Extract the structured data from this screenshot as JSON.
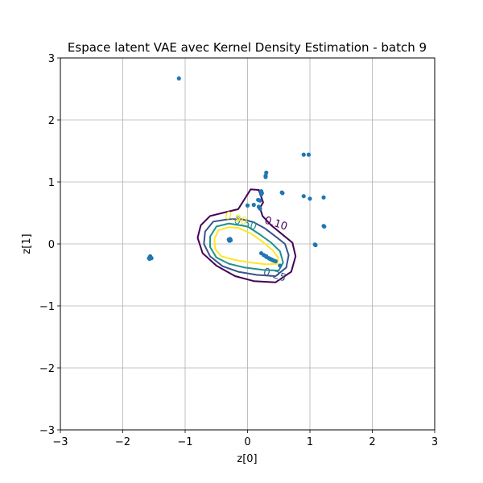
{
  "chart_data": {
    "type": "scatter",
    "title": "Espace latent VAE avec Kernel Density Estimation - batch 9",
    "xlabel": "z[0]",
    "ylabel": "z[1]",
    "xlim": [
      -3,
      3
    ],
    "ylim": [
      -3,
      3
    ],
    "xticks": [
      "−3",
      "−2",
      "−1",
      "0",
      "1",
      "2",
      "3"
    ],
    "yticks": [
      "−3",
      "−2",
      "−1",
      "0",
      "1",
      "2",
      "3"
    ],
    "grid": true,
    "point_color": "#1f77b4",
    "points": [
      [
        -1.1,
        2.67
      ],
      [
        0.9,
        1.44
      ],
      [
        0.98,
        1.44
      ],
      [
        0.3,
        1.15
      ],
      [
        0.29,
        1.1
      ],
      [
        0.29,
        1.08
      ],
      [
        0.22,
        0.85
      ],
      [
        0.23,
        0.82
      ],
      [
        0.22,
        0.8
      ],
      [
        0.56,
        0.82
      ],
      [
        0.55,
        0.83
      ],
      [
        0.9,
        0.77
      ],
      [
        1.0,
        0.73
      ],
      [
        1.22,
        0.75
      ],
      [
        0.17,
        0.71
      ],
      [
        0.2,
        0.7
      ],
      [
        0.0,
        0.62
      ],
      [
        0.1,
        0.63
      ],
      [
        0.18,
        0.6
      ],
      [
        0.2,
        0.57
      ],
      [
        1.22,
        0.29
      ],
      [
        1.23,
        0.28
      ],
      [
        -0.28,
        0.08
      ],
      [
        -0.29,
        0.05
      ],
      [
        -0.27,
        0.06
      ],
      [
        -0.3,
        0.07
      ],
      [
        -1.55,
        -0.22
      ],
      [
        -1.57,
        -0.24
      ],
      [
        -1.54,
        -0.23
      ],
      [
        -1.56,
        -0.2
      ],
      [
        -1.58,
        -0.23
      ],
      [
        1.08,
        -0.01
      ],
      [
        1.09,
        -0.02
      ],
      [
        0.22,
        -0.15
      ],
      [
        0.26,
        -0.18
      ],
      [
        0.3,
        -0.2
      ],
      [
        0.34,
        -0.23
      ],
      [
        0.38,
        -0.25
      ],
      [
        0.42,
        -0.27
      ],
      [
        0.45,
        -0.28
      ],
      [
        0.3,
        -0.21
      ],
      [
        0.36,
        -0.24
      ],
      [
        0.4,
        -0.26
      ],
      [
        0.52,
        -0.35
      ]
    ],
    "contours": [
      {
        "level": "0.10",
        "color": "#440154",
        "label_pos": [
          0.44,
          0.28
        ],
        "path": [
          [
            -0.4,
            0.5
          ],
          [
            -0.6,
            0.45
          ],
          [
            -0.75,
            0.3
          ],
          [
            -0.8,
            0.1
          ],
          [
            -0.72,
            -0.15
          ],
          [
            -0.5,
            -0.35
          ],
          [
            -0.2,
            -0.52
          ],
          [
            0.1,
            -0.6
          ],
          [
            0.45,
            -0.62
          ],
          [
            0.7,
            -0.45
          ],
          [
            0.77,
            -0.2
          ],
          [
            0.72,
            0.02
          ],
          [
            0.55,
            0.16
          ],
          [
            0.38,
            0.3
          ],
          [
            0.24,
            0.45
          ],
          [
            0.2,
            0.58
          ],
          [
            0.25,
            0.67
          ],
          [
            0.18,
            0.87
          ],
          [
            0.05,
            0.88
          ],
          [
            -0.05,
            0.72
          ],
          [
            -0.15,
            0.56
          ],
          [
            -0.4,
            0.5
          ]
        ]
      },
      {
        "level": "0.25",
        "color": "#3b528b",
        "label_pos": [
          0.42,
          -0.55
        ],
        "path": [
          [
            -0.3,
            0.4
          ],
          [
            -0.55,
            0.36
          ],
          [
            -0.68,
            0.2
          ],
          [
            -0.7,
            0.0
          ],
          [
            -0.6,
            -0.2
          ],
          [
            -0.4,
            -0.36
          ],
          [
            -0.15,
            -0.45
          ],
          [
            0.15,
            -0.5
          ],
          [
            0.45,
            -0.52
          ],
          [
            0.62,
            -0.38
          ],
          [
            0.66,
            -0.18
          ],
          [
            0.6,
            0.0
          ],
          [
            0.45,
            0.12
          ],
          [
            0.28,
            0.25
          ],
          [
            0.1,
            0.35
          ],
          [
            -0.1,
            0.4
          ],
          [
            -0.3,
            0.4
          ]
        ]
      },
      {
        "level": "0.50",
        "color": "#21918c",
        "label_pos": [
          -0.05,
          0.28
        ],
        "path": [
          [
            -0.3,
            0.33
          ],
          [
            -0.5,
            0.28
          ],
          [
            -0.6,
            0.12
          ],
          [
            -0.6,
            -0.05
          ],
          [
            -0.5,
            -0.22
          ],
          [
            -0.3,
            -0.32
          ],
          [
            -0.05,
            -0.38
          ],
          [
            0.25,
            -0.42
          ],
          [
            0.5,
            -0.43
          ],
          [
            0.57,
            -0.3
          ],
          [
            0.52,
            -0.12
          ],
          [
            0.38,
            0.02
          ],
          [
            0.2,
            0.15
          ],
          [
            0.0,
            0.28
          ],
          [
            -0.3,
            0.33
          ]
        ]
      },
      {
        "level": "0.90",
        "color": "#fde725",
        "label_pos": [
          -0.2,
          0.36
        ],
        "path": [
          [
            -0.3,
            0.27
          ],
          [
            -0.47,
            0.22
          ],
          [
            -0.53,
            0.08
          ],
          [
            -0.52,
            -0.08
          ],
          [
            -0.42,
            -0.2
          ],
          [
            -0.2,
            -0.26
          ],
          [
            0.05,
            -0.3
          ],
          [
            0.3,
            -0.33
          ],
          [
            0.48,
            -0.32
          ],
          [
            0.49,
            -0.22
          ],
          [
            0.4,
            -0.1
          ],
          [
            0.25,
            0.03
          ],
          [
            0.05,
            0.17
          ],
          [
            -0.15,
            0.26
          ],
          [
            -0.3,
            0.27
          ]
        ]
      }
    ]
  }
}
